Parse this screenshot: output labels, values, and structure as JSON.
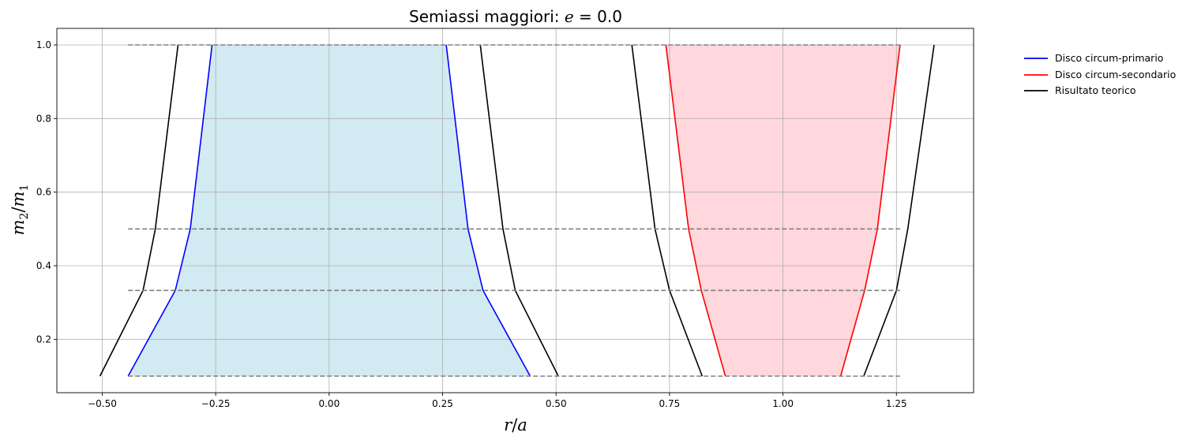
{
  "chart_data": {
    "type": "line",
    "title_prefix": "Semiassi maggiori: ",
    "title_var": "e",
    "title_suffix": " = 0.0",
    "xlabel_var1": "r",
    "xlabel_sep": "/",
    "xlabel_var2": "a",
    "ylabel_var1": "m",
    "ylabel_sub1": "2",
    "ylabel_sep": "/",
    "ylabel_var2": "m",
    "ylabel_sub2": "1",
    "xlim": [
      -0.6,
      1.42
    ],
    "ylim": [
      0.055,
      1.045
    ],
    "xticks": [
      -0.5,
      -0.25,
      0.0,
      0.25,
      0.5,
      0.75,
      1.0,
      1.25
    ],
    "xtick_labels": [
      "−0.50",
      "−0.25",
      "0.00",
      "0.25",
      "0.50",
      "0.75",
      "1.00",
      "1.25"
    ],
    "yticks": [
      0.2,
      0.4,
      0.6,
      0.8,
      1.0
    ],
    "ytick_labels": [
      "0.2",
      "0.4",
      "0.6",
      "0.8",
      "1.0"
    ],
    "grid": true,
    "legend_position": "outside-right",
    "q_values": [
      0.1,
      0.333,
      0.5,
      1.0
    ],
    "series": [
      {
        "name": "Disco circum-primario",
        "color": "#0000ff",
        "fill": "#add8e6",
        "left": [
          [
            -0.443,
            0.1
          ],
          [
            -0.339,
            0.333
          ],
          [
            -0.306,
            0.5
          ],
          [
            -0.258,
            1.0
          ]
        ],
        "right": [
          [
            0.443,
            0.1
          ],
          [
            0.339,
            0.333
          ],
          [
            0.306,
            0.5
          ],
          [
            0.258,
            1.0
          ]
        ]
      },
      {
        "name": "Disco circum-secondario",
        "color": "#ff0000",
        "fill": "#ffb6c1",
        "left": [
          [
            0.873,
            0.1
          ],
          [
            0.82,
            0.333
          ],
          [
            0.792,
            0.5
          ],
          [
            0.742,
            1.0
          ]
        ],
        "right": [
          [
            1.127,
            0.1
          ],
          [
            1.18,
            0.333
          ],
          [
            1.208,
            0.5
          ],
          [
            1.258,
            1.0
          ]
        ]
      },
      {
        "name": "Risultato teorico",
        "color": "#000000",
        "lines": [
          [
            [
              -0.505,
              0.1
            ],
            [
              -0.41,
              0.333
            ],
            [
              -0.383,
              0.5
            ],
            [
              -0.333,
              1.0
            ]
          ],
          [
            [
              0.505,
              0.1
            ],
            [
              0.41,
              0.333
            ],
            [
              0.383,
              0.5
            ],
            [
              0.333,
              1.0
            ]
          ],
          [
            [
              0.822,
              0.1
            ],
            [
              0.75,
              0.333
            ],
            [
              0.718,
              0.5
            ],
            [
              0.667,
              1.0
            ]
          ],
          [
            [
              1.178,
              0.1
            ],
            [
              1.25,
              0.333
            ],
            [
              1.275,
              0.5
            ],
            [
              1.333,
              1.0
            ]
          ]
        ]
      }
    ],
    "dashed_lines": {
      "color": "#808080",
      "x_range": [
        -0.443,
        1.258
      ]
    }
  }
}
